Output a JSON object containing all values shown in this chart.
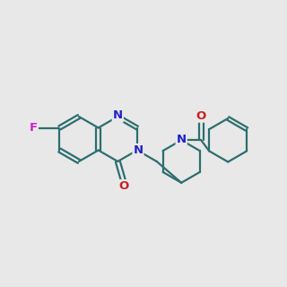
{
  "bg_color": "#e8e8e8",
  "bond_color": "#2d6e6e",
  "N_color": "#2020cc",
  "O_color": "#cc2020",
  "F_color": "#cc20cc",
  "line_width": 1.6,
  "font_size_atom": 9.5
}
